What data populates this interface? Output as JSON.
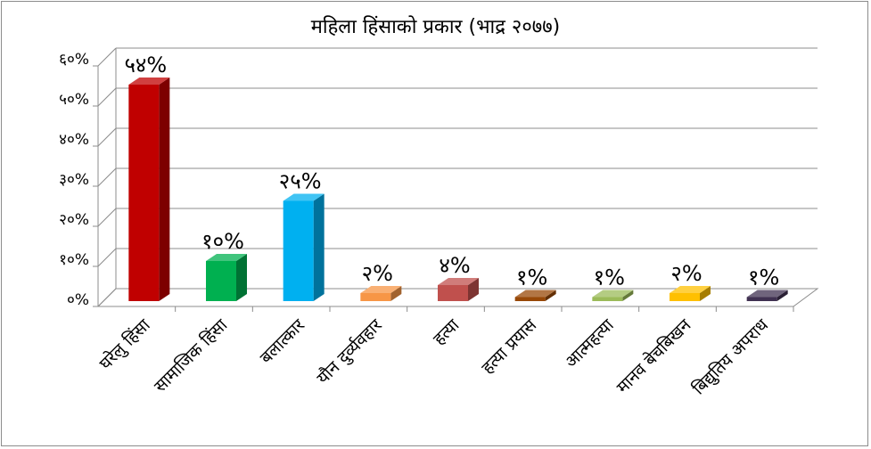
{
  "chart_data": {
    "type": "bar",
    "title": "महिला हिंसाको प्रकार (भाद्र २०७७)",
    "xlabel": "",
    "ylabel": "",
    "ylim": [
      0,
      60
    ],
    "yticks": [
      0,
      10,
      20,
      30,
      40,
      50,
      60
    ],
    "ytick_labels": [
      "०%",
      "१०%",
      "२०%",
      "३०%",
      "४०%",
      "५०%",
      "६०%"
    ],
    "grid": true,
    "legend": "none",
    "categories": [
      "घरेलु हिंसा",
      "सामाजिक हिंसा",
      "बलात्कार",
      "यौन दुर्व्यवहार",
      "हत्या",
      "हत्या प्रयास",
      "आत्महत्या",
      "मानव बेचबिखन",
      "बिद्युतिय अपराध"
    ],
    "values": [
      54,
      10,
      25,
      2,
      4,
      1,
      1,
      2,
      1
    ],
    "data_labels": [
      "५४%",
      "१०%",
      "२५%",
      "२%",
      "४%",
      "१%",
      "१%",
      "२%",
      "१%"
    ],
    "colors": [
      "#c00000",
      "#00b050",
      "#00b0f0",
      "#f79646",
      "#c0504d",
      "#984807",
      "#9bbb59",
      "#ffc000",
      "#403151"
    ]
  }
}
